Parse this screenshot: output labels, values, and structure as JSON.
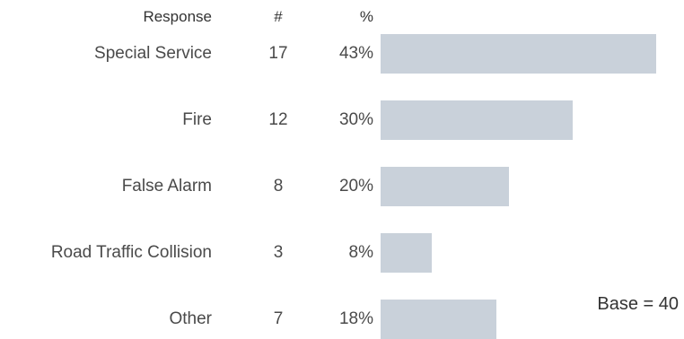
{
  "chart_data": {
    "type": "bar",
    "orientation": "horizontal",
    "headers": {
      "label": "Response",
      "count": "#",
      "percent": "%"
    },
    "categories": [
      "Special Service",
      "Fire",
      "False Alarm",
      "Road Traffic Collision",
      "Other"
    ],
    "counts": [
      "17",
      "12",
      "8",
      "3",
      "7"
    ],
    "percent_labels": [
      "43%",
      "30%",
      "20%",
      "8%",
      "18%"
    ],
    "values": [
      43,
      30,
      20,
      8,
      18
    ],
    "xlim": [
      0,
      43
    ],
    "grid": false,
    "legend": "none",
    "bar_color": "#c9d1da",
    "base_label": "Base = 40"
  }
}
